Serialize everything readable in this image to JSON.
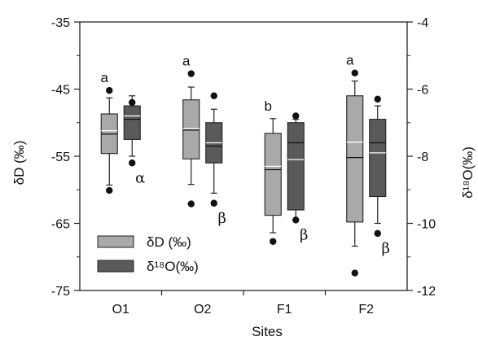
{
  "chart_data": {
    "type": "box",
    "xlabel": "Sites",
    "ylabel_left": "δD (‰)",
    "ylabel_right": "δ¹⁸O(‰)",
    "ylim_left": [
      -75,
      -35
    ],
    "ylim_right": [
      -12,
      -4
    ],
    "yticks_left": [
      "-35",
      "-45",
      "-55",
      "-65",
      "-75"
    ],
    "yticks_right": [
      "-4",
      "-6",
      "-8",
      "-10",
      "-12"
    ],
    "categories": [
      "O1",
      "O2",
      "F1",
      "F2"
    ],
    "legend": [
      {
        "label": "δD (‰)",
        "color": "#a9a9a9"
      },
      {
        "label": "δ¹⁸O(‰)",
        "color": "#5a5a5a"
      }
    ],
    "series": [
      {
        "name": "δD (‰)",
        "axis": "left",
        "color": "#a9a9a9",
        "boxes": [
          {
            "whisker_low": -59.3,
            "q1": -54.6,
            "median": -51.7,
            "mean": -51.2,
            "q3": -48.7,
            "whisker_high": -46.3,
            "outliers": [
              -45.2,
              -60.1
            ]
          },
          {
            "whisker_low": -59.2,
            "q1": -55.4,
            "median": -51.1,
            "mean": -50.9,
            "q3": -46.6,
            "whisker_high": -44.7,
            "outliers": [
              -42.7,
              -62.1
            ]
          },
          {
            "whisker_low": -66.4,
            "q1": -63.8,
            "median": -57.0,
            "mean": -56.5,
            "q3": -51.6,
            "whisker_high": -49.4,
            "outliers": [
              -67.7
            ]
          },
          {
            "whisker_low": -68.4,
            "q1": -64.8,
            "median": -55.2,
            "mean": -52.9,
            "q3": -46.0,
            "whisker_high": -43.8,
            "outliers": [
              -42.6,
              -72.4
            ]
          }
        ]
      },
      {
        "name": "δ¹⁸O(‰)",
        "axis": "right",
        "color": "#5a5a5a",
        "boxes": [
          {
            "whisker_low": -8.0,
            "q1": -7.5,
            "median": -6.9,
            "mean": -6.8,
            "q3": -6.5,
            "whisker_high": -6.2,
            "outliers": [
              -6.4,
              -8.2
            ]
          },
          {
            "whisker_low": -9.1,
            "q1": -8.2,
            "median": -7.7,
            "mean": -7.6,
            "q3": -7.0,
            "whisker_high": -6.6,
            "outliers": [
              -6.2,
              -9.4
            ]
          },
          {
            "whisker_low": -9.9,
            "q1": -9.6,
            "median": -7.6,
            "mean": -8.1,
            "q3": -7.0,
            "whisker_high": -6.9,
            "outliers": [
              -6.8,
              -9.9
            ]
          },
          {
            "whisker_low": -10.0,
            "q1": -9.2,
            "median": -7.6,
            "mean": -7.9,
            "q3": -6.9,
            "whisker_high": -6.5,
            "outliers": [
              -6.3,
              -10.3
            ]
          }
        ]
      }
    ],
    "annotations_dD": [
      "a",
      "a",
      "b",
      "a"
    ],
    "annotations_d18O": [
      "α",
      "β",
      "β",
      "β"
    ],
    "grid": false
  }
}
